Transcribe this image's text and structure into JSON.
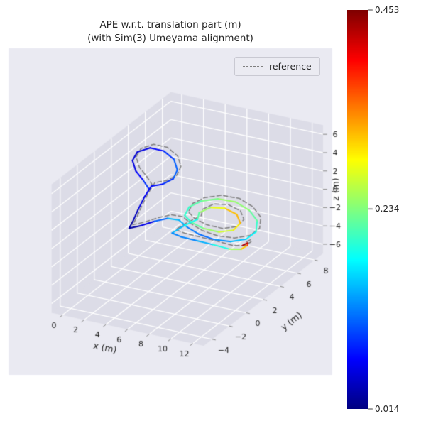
{
  "title": {
    "line1": "APE w.r.t. translation part (m)",
    "line2": "(with Sim(3) Umeyama alignment)"
  },
  "legend": {
    "items": [
      {
        "label": "reference",
        "style": "dashed",
        "color": "#7f7f7f"
      }
    ]
  },
  "colorbar": {
    "colormap": "jet",
    "min": 0.014,
    "max": 0.453,
    "ticks": [
      {
        "value": 0.014,
        "label": "0.014"
      },
      {
        "value": 0.234,
        "label": "0.234"
      },
      {
        "value": 0.453,
        "label": "0.453"
      }
    ]
  },
  "chart_data": {
    "type": "line3d",
    "title": "APE w.r.t. translation part (m) (with Sim(3) Umeyama alignment)",
    "xlabel": "x (m)",
    "ylabel": "y (m)",
    "zlabel": "z (m)",
    "xlim": [
      -1,
      13
    ],
    "ylim": [
      -5,
      9
    ],
    "zlim": [
      -7,
      7
    ],
    "xticks": [
      0,
      2,
      4,
      6,
      8,
      10,
      12
    ],
    "yticks": [
      -4,
      -2,
      0,
      2,
      4,
      6,
      8
    ],
    "zticks": [
      -6,
      -4,
      -2,
      0,
      2,
      4,
      6
    ],
    "grid": true,
    "legend_position": "upper right",
    "series": [
      {
        "name": "estimate",
        "colored_by": "ape_translation_error_m",
        "points": [
          [
            2.0,
            2.6,
            1.8,
            0.1
          ],
          [
            1.2,
            2.9,
            2.4,
            0.08
          ],
          [
            0.4,
            3.1,
            3.0,
            0.06
          ],
          [
            -0.3,
            3.6,
            3.6,
            0.05
          ],
          [
            -0.4,
            4.3,
            4.0,
            0.05
          ],
          [
            0.3,
            4.9,
            4.2,
            0.06
          ],
          [
            1.4,
            5.1,
            4.0,
            0.08
          ],
          [
            2.5,
            4.9,
            3.5,
            0.1
          ],
          [
            3.2,
            4.4,
            2.9,
            0.12
          ],
          [
            3.3,
            3.8,
            2.4,
            0.1
          ],
          [
            2.7,
            3.3,
            2.0,
            0.08
          ],
          [
            1.9,
            3.0,
            1.8,
            0.07
          ],
          [
            1.9,
            2.2,
            1.2,
            0.06
          ],
          [
            2.1,
            1.2,
            0.6,
            0.05
          ],
          [
            2.4,
            0.2,
            0.1,
            0.03
          ],
          [
            2.6,
            -0.5,
            -0.1,
            0.02
          ],
          [
            3.1,
            0.2,
            -0.2,
            0.04
          ],
          [
            3.6,
            1.2,
            -0.3,
            0.08
          ],
          [
            4.2,
            2.0,
            -0.4,
            0.14
          ],
          [
            5.0,
            2.3,
            -0.6,
            0.16
          ],
          [
            6.0,
            2.0,
            -0.9,
            0.13
          ],
          [
            7.2,
            1.8,
            -1.2,
            0.11
          ],
          [
            8.5,
            2.0,
            -1.6,
            0.12
          ],
          [
            9.6,
            2.5,
            -1.9,
            0.14
          ],
          [
            10.4,
            3.3,
            -2.0,
            0.16
          ],
          [
            10.6,
            4.2,
            -1.8,
            0.19
          ],
          [
            10.0,
            5.1,
            -1.4,
            0.21
          ],
          [
            8.8,
            5.7,
            -1.0,
            0.23
          ],
          [
            7.4,
            5.9,
            -0.6,
            0.25
          ],
          [
            6.0,
            5.6,
            -0.4,
            0.24
          ],
          [
            5.0,
            4.9,
            -0.4,
            0.22
          ],
          [
            4.6,
            4.0,
            -0.5,
            0.21
          ],
          [
            4.9,
            3.1,
            -0.7,
            0.19
          ],
          [
            5.8,
            2.7,
            -0.9,
            0.21
          ],
          [
            7.0,
            2.6,
            -1.2,
            0.23
          ],
          [
            8.2,
            2.9,
            -1.5,
            0.26
          ],
          [
            9.0,
            3.6,
            -1.6,
            0.28
          ],
          [
            9.0,
            4.4,
            -1.4,
            0.31
          ],
          [
            8.2,
            5.0,
            -1.1,
            0.33
          ],
          [
            7.0,
            5.1,
            -0.8,
            0.3
          ],
          [
            6.0,
            4.7,
            -0.7,
            0.26
          ],
          [
            5.6,
            3.9,
            -0.8,
            0.23
          ],
          [
            6.0,
            3.2,
            -0.9,
            0.2
          ],
          [
            5.2,
            2.6,
            -1.4,
            0.17
          ],
          [
            4.6,
            2.0,
            -1.9,
            0.13
          ],
          [
            5.5,
            1.9,
            -2.0,
            0.12
          ],
          [
            7.0,
            1.85,
            -2.0,
            0.13
          ],
          [
            8.5,
            1.8,
            -2.0,
            0.16
          ],
          [
            10.0,
            1.8,
            -2.1,
            0.22
          ],
          [
            10.8,
            2.2,
            -2.2,
            0.28
          ],
          [
            10.9,
            2.8,
            -2.2,
            0.34
          ],
          [
            10.6,
            3.2,
            -2.3,
            0.41
          ],
          [
            10.3,
            3.0,
            -2.5,
            0.45
          ]
        ]
      },
      {
        "name": "reference",
        "style": "dashed",
        "color": "#7f7f7f",
        "points": [
          [
            2.1,
            2.9,
            2.0
          ],
          [
            1.3,
            3.2,
            2.6
          ],
          [
            0.5,
            3.4,
            3.2
          ],
          [
            -0.2,
            3.9,
            3.8
          ],
          [
            -0.3,
            4.6,
            4.2
          ],
          [
            0.4,
            5.2,
            4.4
          ],
          [
            1.5,
            5.4,
            4.2
          ],
          [
            2.6,
            5.2,
            3.7
          ],
          [
            3.3,
            4.7,
            3.1
          ],
          [
            3.4,
            4.1,
            2.6
          ],
          [
            2.8,
            3.6,
            2.2
          ],
          [
            2.0,
            3.3,
            2.0
          ],
          [
            2.0,
            2.5,
            1.4
          ],
          [
            2.2,
            1.5,
            0.8
          ],
          [
            2.5,
            0.5,
            0.3
          ],
          [
            2.7,
            -0.2,
            0.1
          ],
          [
            3.2,
            0.5,
            0.0
          ],
          [
            3.7,
            1.5,
            -0.1
          ],
          [
            4.3,
            2.3,
            -0.2
          ],
          [
            5.1,
            2.6,
            -0.4
          ],
          [
            6.1,
            2.3,
            -0.7
          ],
          [
            7.3,
            2.1,
            -1.0
          ],
          [
            8.6,
            2.3,
            -1.4
          ],
          [
            9.7,
            2.8,
            -1.7
          ],
          [
            10.5,
            3.6,
            -1.8
          ],
          [
            10.7,
            4.5,
            -1.6
          ],
          [
            10.1,
            5.4,
            -1.2
          ],
          [
            8.9,
            6.0,
            -0.8
          ],
          [
            7.5,
            6.2,
            -0.4
          ],
          [
            6.1,
            5.9,
            -0.2
          ],
          [
            5.1,
            5.2,
            -0.2
          ],
          [
            4.7,
            4.3,
            -0.3
          ],
          [
            5.0,
            3.4,
            -0.5
          ],
          [
            5.9,
            3.0,
            -0.7
          ],
          [
            7.1,
            2.9,
            -1.0
          ],
          [
            8.3,
            3.2,
            -1.3
          ],
          [
            9.1,
            3.9,
            -1.4
          ],
          [
            9.1,
            4.7,
            -1.2
          ],
          [
            8.3,
            5.3,
            -0.9
          ],
          [
            7.1,
            5.4,
            -0.6
          ],
          [
            6.1,
            5.0,
            -0.5
          ],
          [
            5.7,
            4.2,
            -0.6
          ],
          [
            6.1,
            3.5,
            -0.7
          ],
          [
            5.3,
            2.9,
            -1.2
          ],
          [
            4.7,
            2.3,
            -1.7
          ],
          [
            5.6,
            2.2,
            -1.8
          ],
          [
            7.1,
            2.15,
            -1.8
          ],
          [
            8.6,
            2.1,
            -1.8
          ],
          [
            10.1,
            2.1,
            -1.9
          ],
          [
            10.9,
            2.5,
            -2.0
          ],
          [
            11.0,
            3.1,
            -2.0
          ],
          [
            10.7,
            3.5,
            -2.1
          ],
          [
            10.4,
            3.3,
            -2.3
          ]
        ]
      }
    ]
  }
}
